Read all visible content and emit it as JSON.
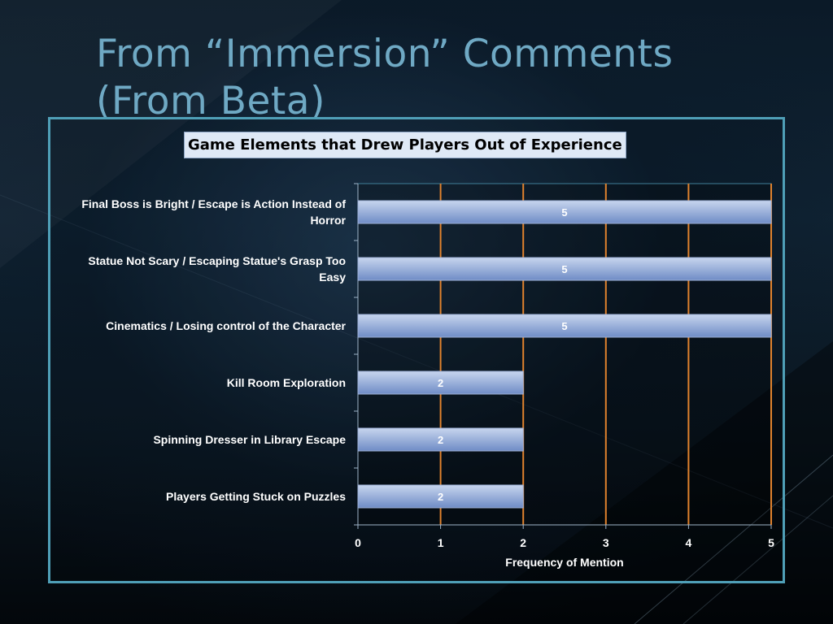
{
  "slide": {
    "title": "From “Immersion” Comments (From Beta)"
  },
  "colors": {
    "bar_fill_top": "#c7d5ee",
    "bar_fill_bottom": "#6f8cc6",
    "gridline": "#e0822d",
    "frame": "#4f9fb7",
    "title_text": "#6fa9c4"
  },
  "chart_data": {
    "type": "bar",
    "orientation": "horizontal",
    "title": "Game Elements that Drew Players Out of Experience",
    "xlabel": "Frequency of Mention",
    "ylabel": "",
    "categories": [
      "Final Boss is Bright / Escape is Action Instead of Horror",
      "Statue Not Scary / Escaping Statue's Grasp Too Easy",
      "Cinematics / Losing control of the Character",
      "Kill Room Exploration",
      "Spinning Dresser in Library Escape",
      "Players Getting Stuck on Puzzles"
    ],
    "values": [
      5,
      5,
      5,
      2,
      2,
      2
    ],
    "xlim": [
      0,
      5
    ],
    "xticks": [
      0,
      1,
      2,
      3,
      4,
      5
    ],
    "data_labels": true,
    "grid": "vertical major gridlines"
  }
}
